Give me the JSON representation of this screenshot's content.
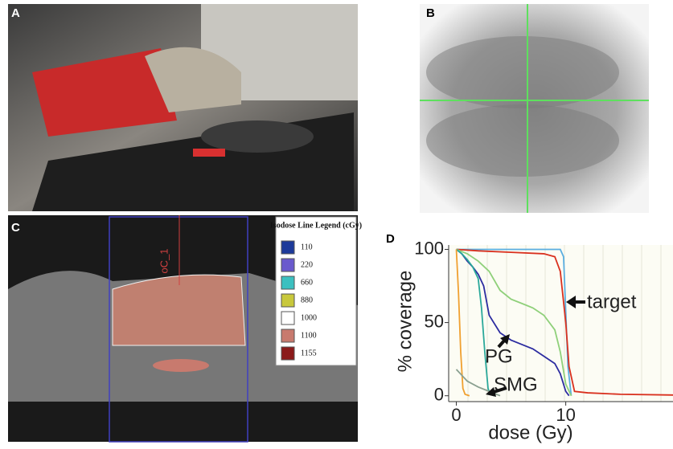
{
  "panels": {
    "a": "A",
    "b": "B",
    "c": "C",
    "d": "D"
  },
  "panel_c": {
    "contour_label": "oC_1",
    "isodose_legend": {
      "title": "Isodose Line Legend (cGy)",
      "entries": [
        {
          "label": 110,
          "color": "#1d3a9a"
        },
        {
          "label": 220,
          "color": "#6a5acd"
        },
        {
          "label": 660,
          "color": "#3cc0c0"
        },
        {
          "label": 880,
          "color": "#c8c83c"
        },
        {
          "label": 1000,
          "color": "#ffffff"
        },
        {
          "label": 1100,
          "color": "#c87a6e"
        },
        {
          "label": 1155,
          "color": "#8b1a1a"
        }
      ]
    }
  },
  "chart_data": {
    "type": "line",
    "xlabel": "dose (Gy)",
    "ylabel": "% coverage",
    "xlim": [
      -0.7,
      19.8
    ],
    "ylim": [
      -4,
      103
    ],
    "xticks": [
      0,
      10
    ],
    "yticks": [
      0,
      50,
      100
    ],
    "annotations": [
      "target",
      "PG",
      "SMG"
    ],
    "series": [
      {
        "color": "#5aaee0",
        "x": [
          0,
          9.5,
          9.8,
          10.2,
          10.5
        ],
        "values": [
          100,
          100,
          95,
          20,
          0
        ]
      },
      {
        "color": "#d9301e",
        "x": [
          0,
          2,
          5,
          8,
          9,
          9.5,
          10,
          10.3,
          10.8,
          12,
          15,
          19.8
        ],
        "values": [
          100,
          99,
          98,
          97,
          95,
          85,
          50,
          20,
          3,
          2,
          1,
          0.5
        ]
      },
      {
        "color": "#2c2ca0",
        "x": [
          0,
          0.5,
          1,
          1.5,
          2,
          2.5,
          3,
          4,
          5,
          6,
          7,
          8,
          9,
          9.5,
          10,
          10.3
        ],
        "values": [
          100,
          97,
          92,
          88,
          83,
          75,
          55,
          43,
          38,
          35,
          32,
          27,
          22,
          15,
          3,
          0
        ]
      },
      {
        "color": "#8fd07a",
        "x": [
          0,
          1,
          2,
          3,
          4,
          5,
          6,
          7,
          8,
          9,
          9.5,
          10,
          10.5
        ],
        "values": [
          100,
          97,
          92,
          85,
          72,
          66,
          63,
          60,
          55,
          45,
          30,
          8,
          0
        ]
      },
      {
        "color": "#2aa89a",
        "x": [
          0,
          0.5,
          1,
          1.5,
          2,
          2.3,
          2.6,
          2.9,
          3.1,
          3.5
        ],
        "values": [
          100,
          97,
          93,
          88,
          80,
          60,
          30,
          5,
          1,
          0
        ]
      },
      {
        "color": "#f0a030",
        "x": [
          0,
          0.2,
          0.4,
          0.6,
          0.8,
          1.2
        ],
        "values": [
          100,
          70,
          30,
          5,
          1,
          0
        ]
      },
      {
        "color": "#8aa090",
        "x": [
          0,
          0.5,
          1,
          2,
          3,
          4
        ],
        "values": [
          18,
          14,
          10,
          6,
          3,
          0
        ]
      }
    ]
  }
}
